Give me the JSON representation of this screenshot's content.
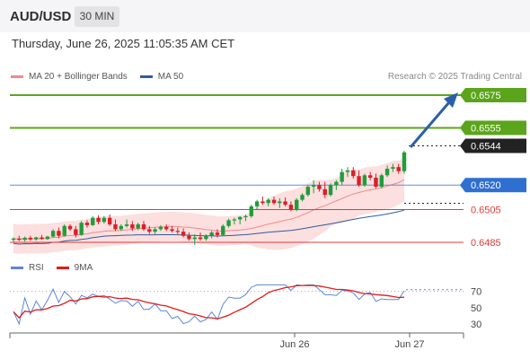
{
  "header": {
    "symbol": "AUD/USD",
    "timeframe": "30 MIN"
  },
  "datetime": "Thursday, June 26, 2025 11:05:35 AM CET",
  "legend": {
    "bollinger": {
      "label": "MA 20 + Bollinger Bands",
      "color": "#f08a8a"
    },
    "ma50": {
      "label": "MA 50",
      "color": "#2f5d9c"
    }
  },
  "credit": "Research © 2025 Trading Central",
  "rsi_legend": {
    "rsi": {
      "label": "RSI",
      "color": "#5b86d6"
    },
    "ma9": {
      "label": "9MA",
      "color": "#e01b1b"
    }
  },
  "colors": {
    "resistance": "#5aa51b",
    "support_red": "#e5393b",
    "support_blue": "#5b8fd8",
    "current": "#222222",
    "arrow": "#2b5ea7",
    "candle_up": "#1e9e3a",
    "candle_down": "#d91f26",
    "band_fill": "#fbd4d4"
  },
  "chart_data": {
    "type": "candlestick",
    "instrument": "AUD/USD",
    "interval": "30 MIN",
    "x_ticks": [
      "Jun 26",
      "Jun 27"
    ],
    "price_range": [
      0.6478,
      0.6583
    ],
    "levels": [
      {
        "value": 0.6575,
        "label": "0.6575",
        "kind": "resistance"
      },
      {
        "value": 0.6555,
        "label": "0.6555",
        "kind": "resistance"
      },
      {
        "value": 0.6544,
        "label": "0.6544",
        "kind": "current"
      },
      {
        "value": 0.652,
        "label": "0.6520",
        "kind": "pivot"
      },
      {
        "value": 0.6505,
        "label": "0.6505",
        "kind": "support"
      },
      {
        "value": 0.6485,
        "label": "0.6485",
        "kind": "support"
      }
    ],
    "candles": [
      [
        0.64865,
        0.6488,
        0.6485,
        0.64873
      ],
      [
        0.64873,
        0.6489,
        0.64858,
        0.64865
      ],
      [
        0.64865,
        0.64885,
        0.64855,
        0.64878
      ],
      [
        0.64878,
        0.6489,
        0.6486,
        0.64868
      ],
      [
        0.64868,
        0.64885,
        0.6486,
        0.6488
      ],
      [
        0.6488,
        0.64895,
        0.64865,
        0.6487
      ],
      [
        0.6487,
        0.6489,
        0.64865,
        0.64885
      ],
      [
        0.64885,
        0.6493,
        0.6488,
        0.6492
      ],
      [
        0.6492,
        0.6494,
        0.64875,
        0.6489
      ],
      [
        0.6489,
        0.6496,
        0.64885,
        0.6495
      ],
      [
        0.6495,
        0.6496,
        0.6492,
        0.6493
      ],
      [
        0.6493,
        0.6495,
        0.6488,
        0.64895
      ],
      [
        0.64895,
        0.6498,
        0.6489,
        0.6497
      ],
      [
        0.6497,
        0.64985,
        0.6494,
        0.64955
      ],
      [
        0.64955,
        0.6501,
        0.6495,
        0.65
      ],
      [
        0.65,
        0.65015,
        0.6496,
        0.64975
      ],
      [
        0.64975,
        0.6501,
        0.64965,
        0.65
      ],
      [
        0.65,
        0.6502,
        0.6495,
        0.6496
      ],
      [
        0.6496,
        0.6499,
        0.6492,
        0.6493
      ],
      [
        0.6493,
        0.6496,
        0.6492,
        0.6495
      ],
      [
        0.6495,
        0.6499,
        0.6494,
        0.6496
      ],
      [
        0.6496,
        0.6498,
        0.6492,
        0.64935
      ],
      [
        0.64935,
        0.6497,
        0.64925,
        0.6496
      ],
      [
        0.6496,
        0.6498,
        0.6492,
        0.6493
      ],
      [
        0.6493,
        0.6495,
        0.649,
        0.64915
      ],
      [
        0.64915,
        0.6494,
        0.649,
        0.6493
      ],
      [
        0.6493,
        0.64955,
        0.6492,
        0.64945
      ],
      [
        0.64945,
        0.6496,
        0.6492,
        0.6493
      ],
      [
        0.6493,
        0.6495,
        0.6491,
        0.6492
      ],
      [
        0.6492,
        0.6494,
        0.649,
        0.64915
      ],
      [
        0.64915,
        0.64935,
        0.6488,
        0.6489
      ],
      [
        0.6489,
        0.6491,
        0.6486,
        0.6487
      ],
      [
        0.6487,
        0.649,
        0.64835,
        0.6488
      ],
      [
        0.6488,
        0.6491,
        0.6486,
        0.6487
      ],
      [
        0.6487,
        0.649,
        0.6486,
        0.6489
      ],
      [
        0.6489,
        0.6492,
        0.64875,
        0.6491
      ],
      [
        0.6491,
        0.6493,
        0.6488,
        0.64895
      ],
      [
        0.64895,
        0.6496,
        0.6489,
        0.6495
      ],
      [
        0.6495,
        0.64995,
        0.6494,
        0.64985
      ],
      [
        0.64985,
        0.65,
        0.6496,
        0.6499
      ],
      [
        0.6499,
        0.6501,
        0.6496,
        0.65005
      ],
      [
        0.65005,
        0.6502,
        0.6498,
        0.6501
      ],
      [
        0.6501,
        0.6508,
        0.65,
        0.6507
      ],
      [
        0.6507,
        0.6511,
        0.6505,
        0.651
      ],
      [
        0.651,
        0.6513,
        0.6508,
        0.6509
      ],
      [
        0.6509,
        0.6512,
        0.6507,
        0.6511
      ],
      [
        0.6511,
        0.6513,
        0.6508,
        0.6509
      ],
      [
        0.6509,
        0.6512,
        0.6506,
        0.651
      ],
      [
        0.651,
        0.65125,
        0.6507,
        0.6508
      ],
      [
        0.6508,
        0.651,
        0.6504,
        0.6505
      ],
      [
        0.6505,
        0.6512,
        0.6504,
        0.6511
      ],
      [
        0.6511,
        0.6515,
        0.651,
        0.6514
      ],
      [
        0.6514,
        0.652,
        0.6513,
        0.6519
      ],
      [
        0.6519,
        0.6523,
        0.6515,
        0.652
      ],
      [
        0.652,
        0.6522,
        0.6516,
        0.65175
      ],
      [
        0.65175,
        0.6522,
        0.6512,
        0.6514
      ],
      [
        0.6514,
        0.6521,
        0.6513,
        0.652
      ],
      [
        0.652,
        0.6523,
        0.6517,
        0.6522
      ],
      [
        0.6522,
        0.653,
        0.652,
        0.6528
      ],
      [
        0.6528,
        0.6531,
        0.6525,
        0.6529
      ],
      [
        0.6529,
        0.6531,
        0.6524,
        0.65255
      ],
      [
        0.65255,
        0.6529,
        0.6519,
        0.652
      ],
      [
        0.652,
        0.6527,
        0.6519,
        0.6526
      ],
      [
        0.6526,
        0.6528,
        0.6523,
        0.65245
      ],
      [
        0.65245,
        0.6527,
        0.6518,
        0.6519
      ],
      [
        0.6519,
        0.6527,
        0.6518,
        0.6526
      ],
      [
        0.6526,
        0.6532,
        0.6525,
        0.653
      ],
      [
        0.653,
        0.6533,
        0.6528,
        0.6531
      ],
      [
        0.6531,
        0.6533,
        0.6527,
        0.65285
      ],
      [
        0.65285,
        0.6541,
        0.6527,
        0.654
      ]
    ]
  },
  "rsi_data": {
    "y_ticks": [
      "70",
      "50",
      "30"
    ],
    "range": [
      20,
      85
    ]
  }
}
